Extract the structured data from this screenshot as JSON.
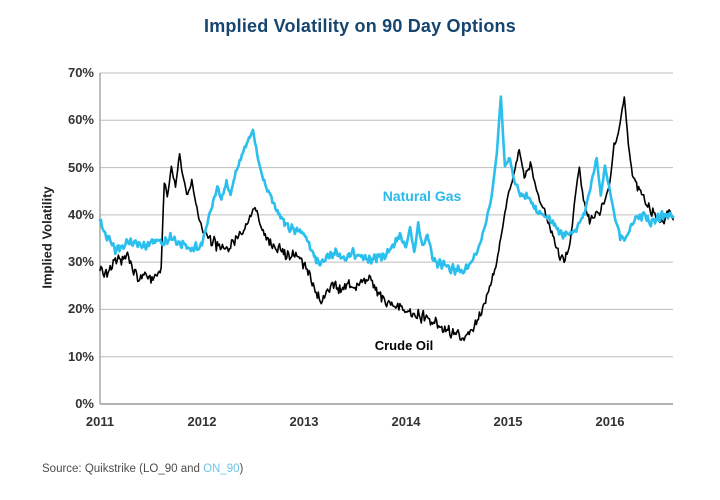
{
  "title": "Implied Volatility on 90 Day Options",
  "y_axis": {
    "label": "Implied Volatility",
    "ticks": [
      "0%",
      "10%",
      "20%",
      "30%",
      "40%",
      "50%",
      "60%",
      "70%"
    ],
    "min": 0,
    "max": 70
  },
  "x_axis": {
    "ticks": [
      "2011",
      "2012",
      "2013",
      "2014",
      "2015",
      "2016"
    ],
    "start_year": 2011,
    "end_year": 2016.62
  },
  "annotations": {
    "natural_gas_label": "Natural Gas",
    "crude_oil_label": "Crude Oil"
  },
  "source": {
    "prefix": "Source: Quikstrike (LO_90 and ",
    "highlight": "ON_90",
    "suffix": ")"
  },
  "colors": {
    "natural_gas": "#2bbfee",
    "crude_oil": "#000000",
    "title": "#16456f",
    "grid": "#bdbdbd",
    "axis": "#9a9a9a",
    "tick_text": "#333333",
    "source_text": "#4d4d4d",
    "source_highlight": "#6fc2e8"
  },
  "chart_data": {
    "type": "line",
    "title": "Implied Volatility on 90 Day Options",
    "xlabel": "",
    "ylabel": "Implied Volatility",
    "y_unit": "%",
    "x_range": [
      2011,
      2016.62
    ],
    "ylim": [
      0,
      70
    ],
    "grid": "horizontal",
    "legend": "inline-labels",
    "series": [
      {
        "name": "Crude Oil",
        "color": "#000000",
        "points": [
          [
            2011.0,
            29
          ],
          [
            2011.05,
            27.5
          ],
          [
            2011.1,
            28.5
          ],
          [
            2011.15,
            31
          ],
          [
            2011.21,
            30
          ],
          [
            2011.26,
            32
          ],
          [
            2011.32,
            28.5
          ],
          [
            2011.38,
            26.5
          ],
          [
            2011.44,
            28
          ],
          [
            2011.5,
            26.5
          ],
          [
            2011.56,
            27
          ],
          [
            2011.6,
            29
          ],
          [
            2011.63,
            47
          ],
          [
            2011.66,
            44
          ],
          [
            2011.7,
            50
          ],
          [
            2011.74,
            46
          ],
          [
            2011.78,
            53
          ],
          [
            2011.82,
            47
          ],
          [
            2011.86,
            44
          ],
          [
            2011.9,
            47
          ],
          [
            2011.95,
            41
          ],
          [
            2012.0,
            37.5
          ],
          [
            2012.06,
            35
          ],
          [
            2012.12,
            34
          ],
          [
            2012.19,
            33.5
          ],
          [
            2012.26,
            33
          ],
          [
            2012.33,
            34.5
          ],
          [
            2012.4,
            36.5
          ],
          [
            2012.46,
            39
          ],
          [
            2012.52,
            42
          ],
          [
            2012.57,
            38
          ],
          [
            2012.63,
            35
          ],
          [
            2012.7,
            33.5
          ],
          [
            2012.77,
            32.5
          ],
          [
            2012.85,
            31
          ],
          [
            2012.92,
            31.5
          ],
          [
            2013.0,
            29.5
          ],
          [
            2013.06,
            27
          ],
          [
            2013.12,
            23.5
          ],
          [
            2013.17,
            21.5
          ],
          [
            2013.23,
            24.5
          ],
          [
            2013.29,
            25.5
          ],
          [
            2013.36,
            24
          ],
          [
            2013.43,
            25.5
          ],
          [
            2013.5,
            24.5
          ],
          [
            2013.57,
            26
          ],
          [
            2013.64,
            27
          ],
          [
            2013.7,
            24.5
          ],
          [
            2013.77,
            22.5
          ],
          [
            2013.84,
            21
          ],
          [
            2013.92,
            20.5
          ],
          [
            2014.0,
            20
          ],
          [
            2014.08,
            19
          ],
          [
            2014.16,
            18.5
          ],
          [
            2014.25,
            17.5
          ],
          [
            2014.33,
            16.5
          ],
          [
            2014.42,
            15.5
          ],
          [
            2014.5,
            14.5
          ],
          [
            2014.57,
            13.8
          ],
          [
            2014.64,
            15.5
          ],
          [
            2014.71,
            18
          ],
          [
            2014.78,
            22
          ],
          [
            2014.84,
            26
          ],
          [
            2014.89,
            30
          ],
          [
            2014.95,
            38
          ],
          [
            2015.0,
            44
          ],
          [
            2015.05,
            48
          ],
          [
            2015.11,
            54
          ],
          [
            2015.16,
            48
          ],
          [
            2015.22,
            51
          ],
          [
            2015.28,
            45
          ],
          [
            2015.35,
            41
          ],
          [
            2015.42,
            37
          ],
          [
            2015.49,
            32
          ],
          [
            2015.55,
            30
          ],
          [
            2015.61,
            34
          ],
          [
            2015.67,
            46
          ],
          [
            2015.7,
            50
          ],
          [
            2015.74,
            43
          ],
          [
            2015.79,
            39
          ],
          [
            2015.85,
            40
          ],
          [
            2015.91,
            41
          ],
          [
            2015.96,
            44
          ],
          [
            2016.0,
            47
          ],
          [
            2016.04,
            55
          ],
          [
            2016.08,
            57
          ],
          [
            2016.11,
            61
          ],
          [
            2016.14,
            65
          ],
          [
            2016.18,
            55
          ],
          [
            2016.22,
            48
          ],
          [
            2016.27,
            46
          ],
          [
            2016.33,
            43.5
          ],
          [
            2016.4,
            41
          ],
          [
            2016.47,
            39
          ],
          [
            2016.53,
            38.5
          ],
          [
            2016.58,
            41.5
          ],
          [
            2016.62,
            39
          ]
        ]
      },
      {
        "name": "Natural Gas",
        "color": "#2bbfee",
        "points": [
          [
            2011.0,
            39
          ],
          [
            2011.05,
            36
          ],
          [
            2011.1,
            34.5
          ],
          [
            2011.15,
            32.5
          ],
          [
            2011.21,
            33
          ],
          [
            2011.29,
            34.5
          ],
          [
            2011.37,
            34
          ],
          [
            2011.45,
            33.5
          ],
          [
            2011.54,
            34.5
          ],
          [
            2011.62,
            34
          ],
          [
            2011.7,
            35.5
          ],
          [
            2011.78,
            34
          ],
          [
            2011.87,
            33
          ],
          [
            2011.95,
            33
          ],
          [
            2012.0,
            34
          ],
          [
            2012.05,
            38
          ],
          [
            2012.1,
            42
          ],
          [
            2012.15,
            46
          ],
          [
            2012.19,
            43
          ],
          [
            2012.24,
            47
          ],
          [
            2012.28,
            44
          ],
          [
            2012.33,
            49
          ],
          [
            2012.38,
            52
          ],
          [
            2012.44,
            55
          ],
          [
            2012.5,
            58
          ],
          [
            2012.54,
            53
          ],
          [
            2012.58,
            49
          ],
          [
            2012.63,
            46
          ],
          [
            2012.68,
            43.5
          ],
          [
            2012.73,
            41
          ],
          [
            2012.78,
            39
          ],
          [
            2012.85,
            37.5
          ],
          [
            2012.92,
            36.5
          ],
          [
            2013.0,
            36
          ],
          [
            2013.06,
            33
          ],
          [
            2013.12,
            30.5
          ],
          [
            2013.18,
            30
          ],
          [
            2013.25,
            31.5
          ],
          [
            2013.32,
            32
          ],
          [
            2013.4,
            31
          ],
          [
            2013.48,
            32
          ],
          [
            2013.56,
            31.5
          ],
          [
            2013.64,
            30.5
          ],
          [
            2013.72,
            31
          ],
          [
            2013.8,
            31.5
          ],
          [
            2013.88,
            33.5
          ],
          [
            2013.94,
            36
          ],
          [
            2014.0,
            33
          ],
          [
            2014.04,
            37.5
          ],
          [
            2014.08,
            32
          ],
          [
            2014.12,
            38
          ],
          [
            2014.16,
            33.5
          ],
          [
            2014.21,
            36
          ],
          [
            2014.26,
            31
          ],
          [
            2014.32,
            29.5
          ],
          [
            2014.4,
            29
          ],
          [
            2014.48,
            28.5
          ],
          [
            2014.56,
            28.5
          ],
          [
            2014.64,
            30
          ],
          [
            2014.71,
            33
          ],
          [
            2014.78,
            38
          ],
          [
            2014.84,
            44
          ],
          [
            2014.89,
            53
          ],
          [
            2014.93,
            65
          ],
          [
            2014.97,
            50
          ],
          [
            2015.02,
            52
          ],
          [
            2015.06,
            47
          ],
          [
            2015.12,
            44.5
          ],
          [
            2015.2,
            43.5
          ],
          [
            2015.28,
            41
          ],
          [
            2015.36,
            40
          ],
          [
            2015.44,
            38.5
          ],
          [
            2015.52,
            36
          ],
          [
            2015.6,
            35.5
          ],
          [
            2015.68,
            37.5
          ],
          [
            2015.76,
            41
          ],
          [
            2015.83,
            48
          ],
          [
            2015.87,
            52
          ],
          [
            2015.91,
            44
          ],
          [
            2015.95,
            50
          ],
          [
            2016.0,
            45
          ],
          [
            2016.05,
            39
          ],
          [
            2016.1,
            35.5
          ],
          [
            2016.15,
            34.5
          ],
          [
            2016.21,
            37.5
          ],
          [
            2016.27,
            39.5
          ],
          [
            2016.33,
            40
          ],
          [
            2016.4,
            38.5
          ],
          [
            2016.47,
            39.5
          ],
          [
            2016.54,
            40
          ],
          [
            2016.62,
            39.5
          ]
        ]
      }
    ]
  }
}
